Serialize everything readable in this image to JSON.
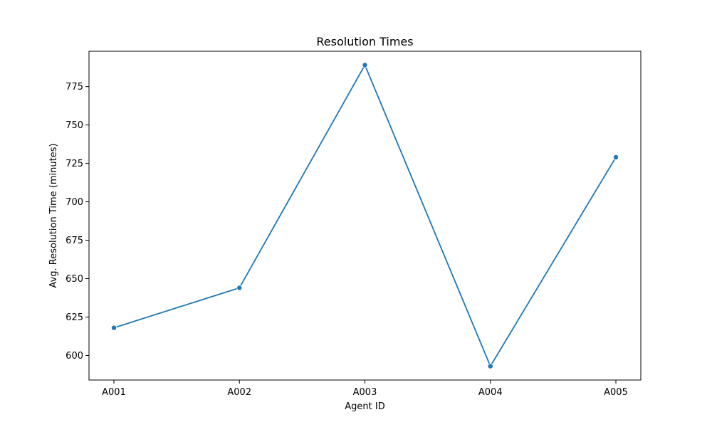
{
  "chart_data": {
    "type": "line",
    "title": "Resolution Times",
    "xlabel": "Agent ID",
    "ylabel": "Avg. Resolution Time (minutes)",
    "categories": [
      "A001",
      "A002",
      "A003",
      "A004",
      "A005"
    ],
    "values": [
      618,
      644,
      789,
      593,
      729
    ],
    "ylim": [
      584,
      798
    ],
    "yticks": [
      600,
      625,
      650,
      675,
      700,
      725,
      750,
      775
    ],
    "grid": false,
    "legend": "none",
    "line_color": "#1f77b4",
    "marker": "circle"
  }
}
